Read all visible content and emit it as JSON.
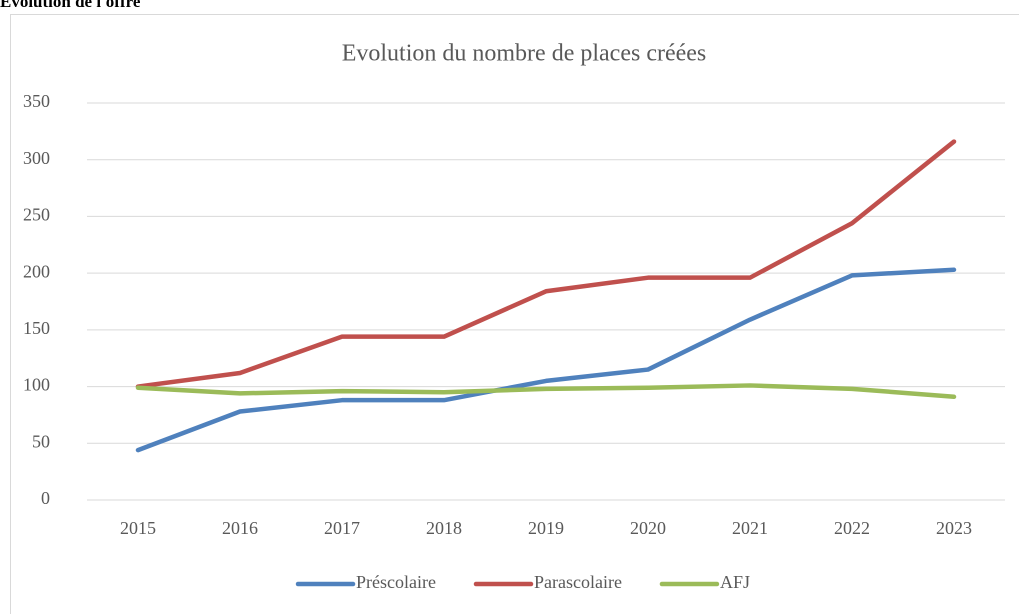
{
  "heading": "Evolution de l'offre",
  "chart_data": {
    "type": "line",
    "title": "Evolution du nombre de places créées",
    "categories": [
      "2015",
      "2016",
      "2017",
      "2018",
      "2019",
      "2020",
      "2021",
      "2022",
      "2023"
    ],
    "series": [
      {
        "name": "Préscolaire",
        "color": "#4f81bd",
        "values": [
          44,
          78,
          88,
          88,
          105,
          115,
          159,
          198,
          203
        ]
      },
      {
        "name": "Parascolaire",
        "color": "#c0504d",
        "values": [
          100,
          112,
          144,
          144,
          184,
          196,
          196,
          244,
          316
        ]
      },
      {
        "name": "AFJ",
        "color": "#9bbb59",
        "values": [
          99,
          94,
          96,
          95,
          98,
          99,
          101,
          98,
          91
        ]
      }
    ],
    "ylim": [
      0,
      350
    ],
    "yticks": [
      0,
      50,
      100,
      150,
      200,
      250,
      300,
      350
    ],
    "grid": true,
    "legend": "bottom"
  }
}
